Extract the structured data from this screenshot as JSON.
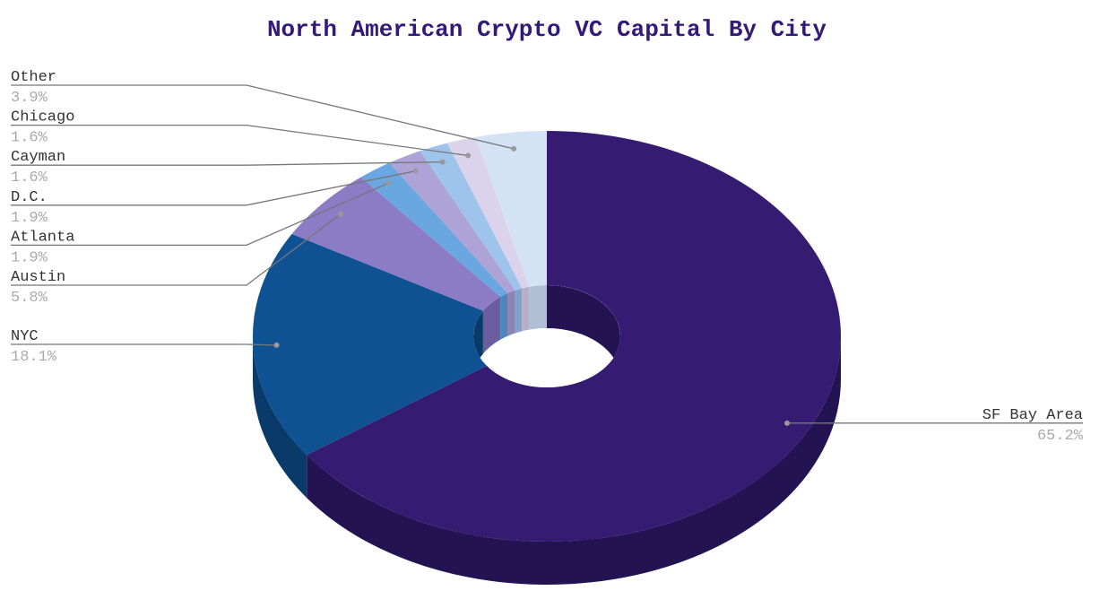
{
  "chart_data": {
    "type": "pie",
    "style": "3d-donut",
    "title": "North American Crypto VC Capital By City",
    "slices": [
      {
        "label": "SF Bay Area",
        "value": 65.2,
        "value_label": "65.2%",
        "color": "#361b73",
        "side_color": "#231352",
        "label_side": "right"
      },
      {
        "label": "NYC",
        "value": 18.1,
        "value_label": "18.1%",
        "color": "#0e5294",
        "side_color": "#093a6a",
        "label_side": "left"
      },
      {
        "label": "Austin",
        "value": 5.8,
        "value_label": "5.8%",
        "color": "#8b7cc5",
        "side_color": "#6b5da0",
        "label_side": "left"
      },
      {
        "label": "Atlanta",
        "value": 1.9,
        "value_label": "1.9%",
        "color": "#6aa7e0",
        "side_color": "#4d86bc",
        "label_side": "left"
      },
      {
        "label": "D.C.",
        "value": 1.9,
        "value_label": "1.9%",
        "color": "#ada3d6",
        "side_color": "#8c82b4",
        "label_side": "left"
      },
      {
        "label": "Cayman",
        "value": 1.6,
        "value_label": "1.6%",
        "color": "#9fc4eb",
        "side_color": "#7ea2c8",
        "label_side": "left"
      },
      {
        "label": "Chicago",
        "value": 1.6,
        "value_label": "1.6%",
        "color": "#dbd3ec",
        "side_color": "#b7aecb",
        "label_side": "left"
      },
      {
        "label": "Other",
        "value": 3.9,
        "value_label": "3.9%",
        "color": "#d3e2f5",
        "side_color": "#afbfd4",
        "label_side": "left"
      }
    ],
    "legend": "none",
    "label_placement": "outside-with-leader-lines"
  }
}
